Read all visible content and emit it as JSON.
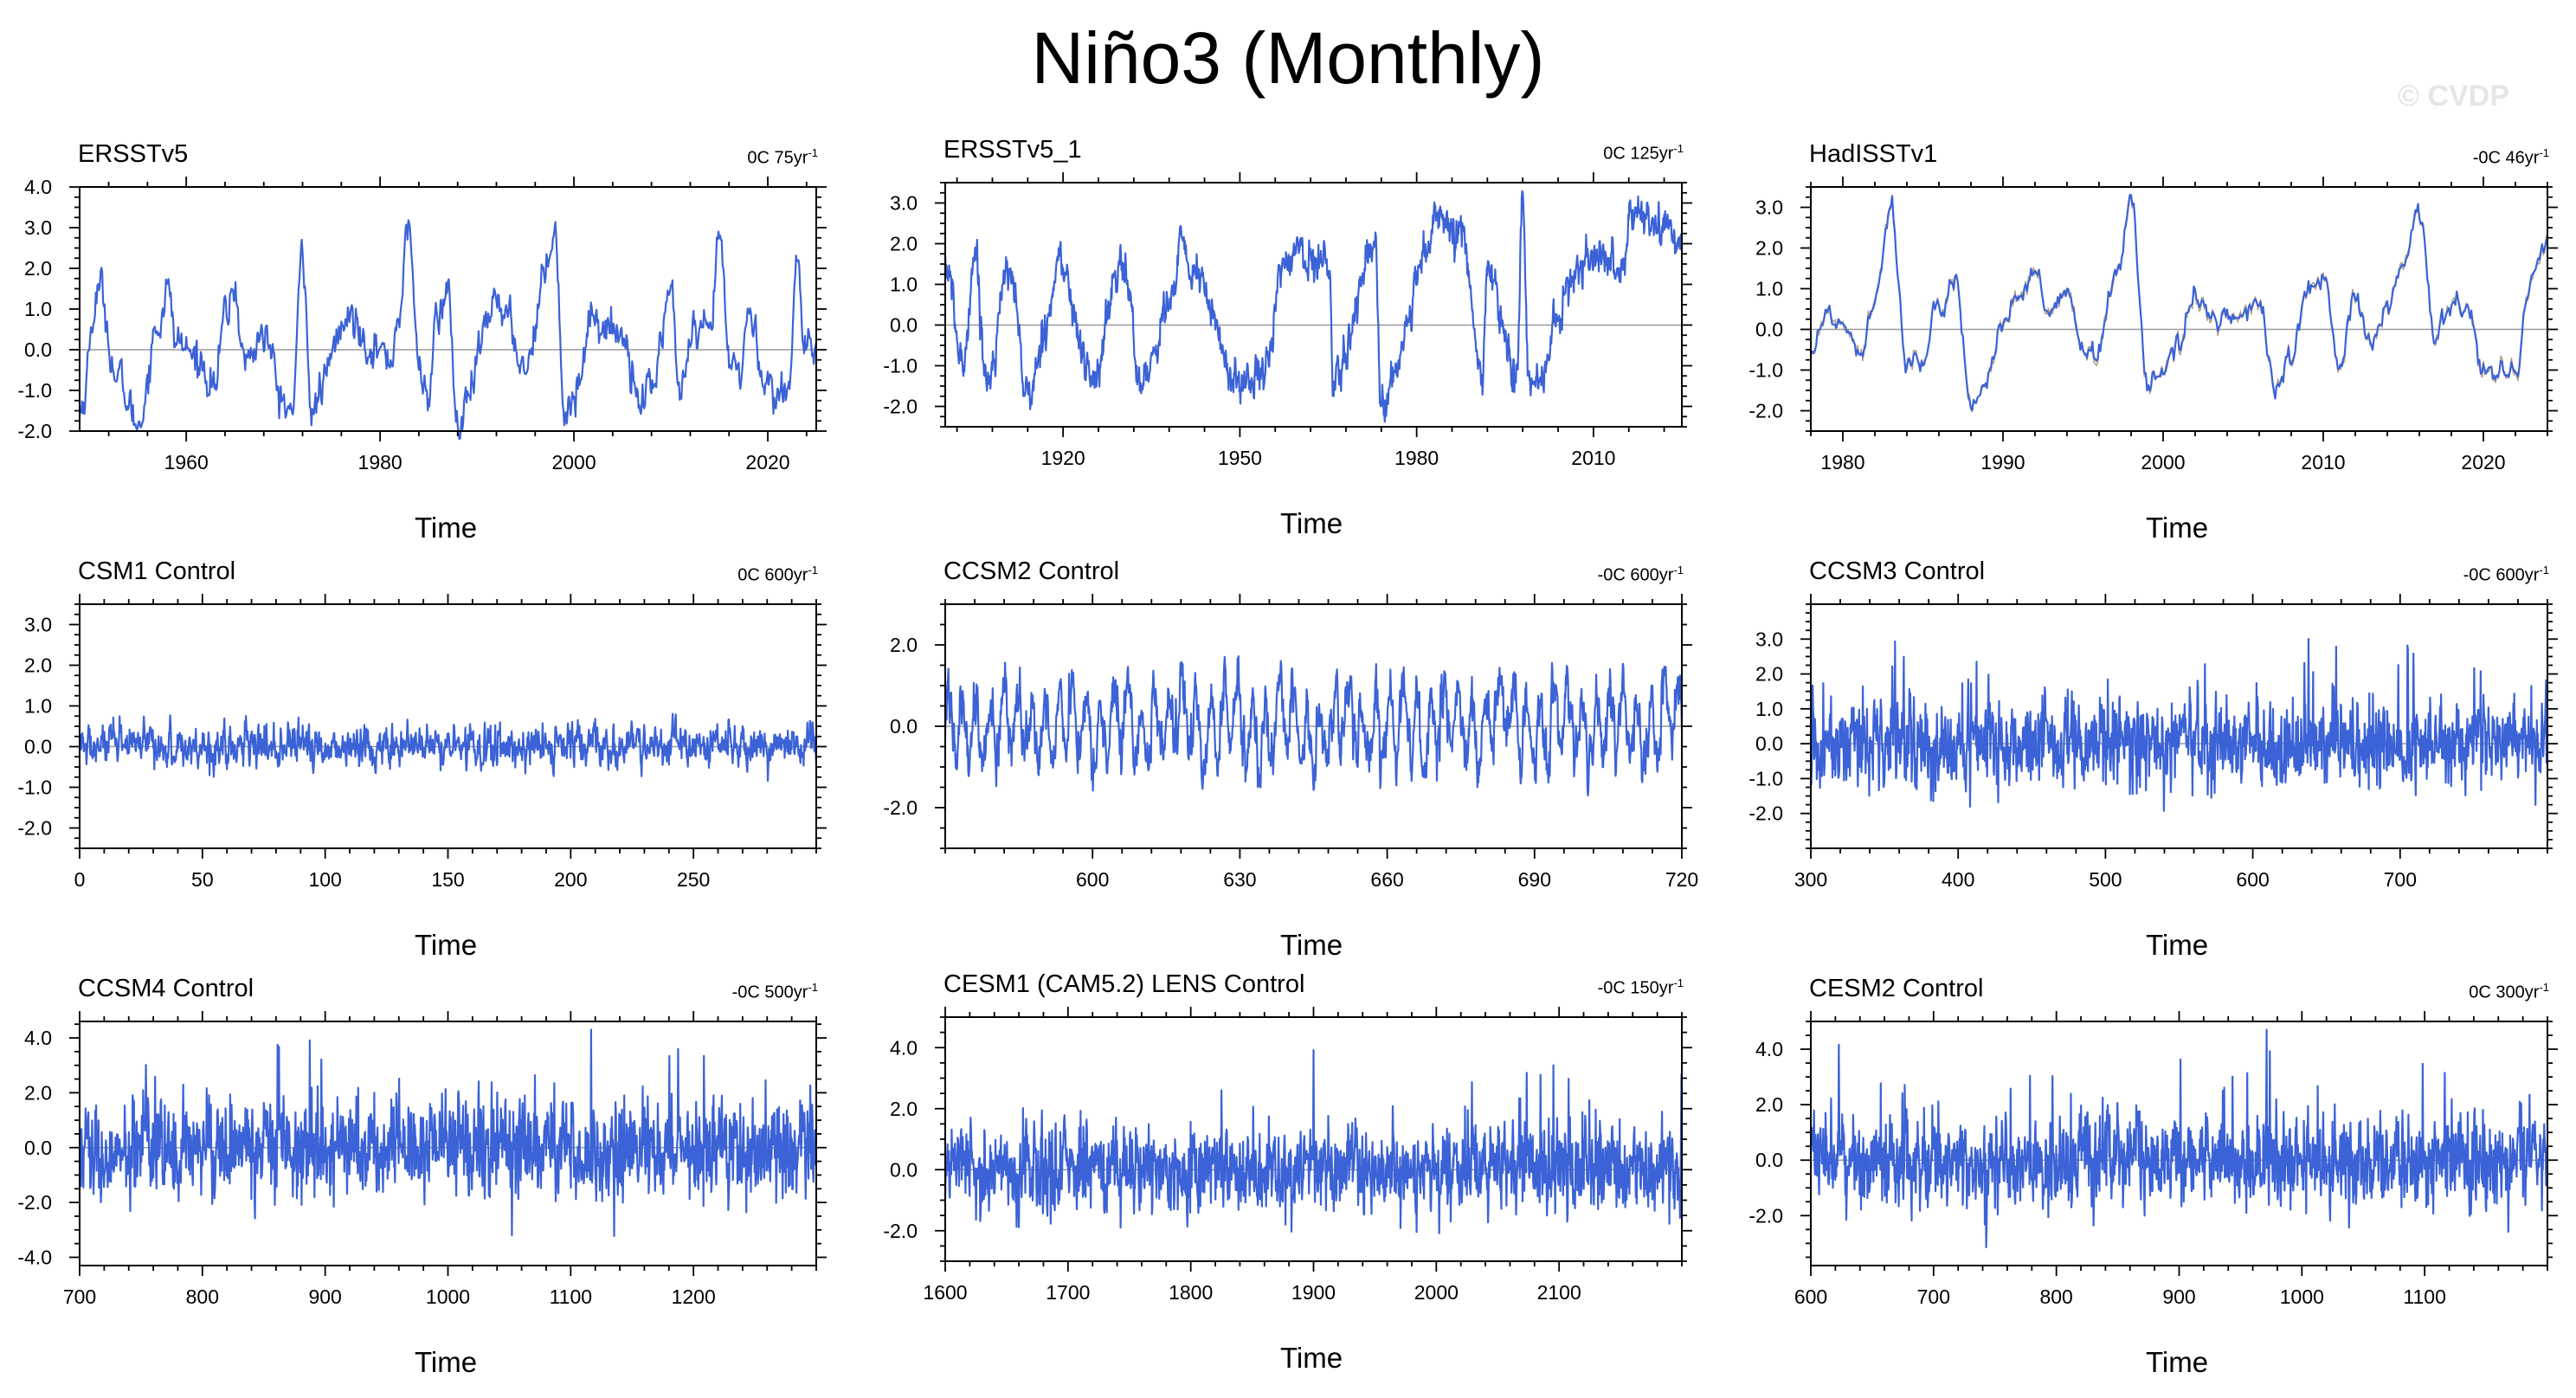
{
  "title": "Niño3 (Monthly)",
  "watermark": "© CVDP",
  "colors": {
    "series": "#3b62d6",
    "axis": "#000000",
    "zero_line": "#9a9a9a",
    "ensemble_spread": "#b0a08a"
  },
  "chart_data": [
    {
      "type": "line",
      "title": "ERSSTv5",
      "stat": "0C 75yr",
      "stat_exp": "-1",
      "xlabel": "Time",
      "ylabel": "",
      "xlim": [
        1949,
        2025
      ],
      "xticks": [
        1960,
        1980,
        2000,
        2020
      ],
      "xtick_labels": [
        "1960",
        "1980",
        "2000",
        "2020"
      ],
      "ylim": [
        -2.0,
        4.0
      ],
      "yticks": [
        -2.0,
        -1.0,
        0.0,
        1.0,
        2.0,
        3.0,
        4.0
      ],
      "ytick_labels": [
        "-2.0",
        "-1.0",
        "0.0",
        "1.0",
        "2.0",
        "3.0",
        "4.0"
      ],
      "series_style": "smooth",
      "amplitude": 0.75,
      "x": [
        1949,
        1951,
        1953,
        1955,
        1957,
        1958,
        1959,
        1961,
        1963,
        1964,
        1965,
        1966,
        1968,
        1970,
        1971,
        1972,
        1973,
        1974,
        1976,
        1977,
        1979,
        1981,
        1982,
        1983,
        1984,
        1985,
        1986,
        1987,
        1988,
        1989,
        1991,
        1992,
        1993,
        1995,
        1997,
        1998,
        1999,
        2000,
        2002,
        2003,
        2005,
        2007,
        2008,
        2010,
        2011,
        2012,
        2014,
        2015,
        2016,
        2017,
        2018,
        2020,
        2021,
        2022,
        2023,
        2024
      ],
      "y": [
        -1.5,
        1.5,
        -0.8,
        -1.8,
        0.5,
        1.5,
        0.2,
        -0.2,
        -0.8,
        0.8,
        1.5,
        -0.3,
        0.4,
        -1.3,
        -1.5,
        2.5,
        -1.7,
        -0.9,
        0.5,
        0.8,
        0.2,
        -0.3,
        1.0,
        3.0,
        -0.5,
        -1.0,
        0.8,
        1.5,
        -2.0,
        -1.3,
        0.5,
        1.5,
        0.7,
        -0.4,
        1.8,
        3.3,
        -1.5,
        -1.2,
        1.0,
        0.5,
        0.4,
        -1.2,
        -0.9,
        1.5,
        -1.3,
        0.2,
        0.3,
        2.8,
        -0.3,
        -0.6,
        0.8,
        -0.8,
        -1.2,
        -1.0,
        2.2,
        -0.3
      ]
    },
    {
      "type": "line",
      "title": "ERSSTv5_1",
      "stat": "0C 125yr",
      "stat_exp": "-1",
      "xlabel": "Time",
      "ylabel": "",
      "xlim": [
        1900,
        2025
      ],
      "xticks": [
        1920,
        1950,
        1980,
        2010
      ],
      "xtick_labels": [
        "1920",
        "1950",
        "1980",
        "2010"
      ],
      "ylim": [
        -2.5,
        3.5
      ],
      "yticks": [
        -2.0,
        -1.0,
        0.0,
        1.0,
        2.0,
        3.0
      ],
      "ytick_labels": [
        "-2.0",
        "-1.0",
        "0.0",
        "1.0",
        "2.0",
        "3.0"
      ],
      "series_style": "smooth",
      "amplitude": 0.75,
      "x": [
        1900,
        1903,
        1905,
        1907,
        1911,
        1914,
        1918,
        1919,
        1925,
        1930,
        1931,
        1933,
        1939,
        1940,
        1942,
        1950,
        1955,
        1957,
        1958,
        1965,
        1966,
        1973,
        1974,
        1976,
        1982,
        1983,
        1988,
        1991,
        1992,
        1997,
        1998,
        1999,
        2009,
        2015,
        2016,
        2024
      ],
      "y": [
        1.5,
        -1.0,
        1.8,
        -1.3,
        1.4,
        -1.8,
        0.5,
        1.6,
        -1.3,
        1.5,
        0.9,
        -1.4,
        0.8,
        2.0,
        1.3,
        -1.5,
        -0.8,
        1.2,
        1.8,
        1.5,
        -1.3,
        2.0,
        -2.0,
        -1.3,
        1.8,
        2.7,
        2.1,
        -1.6,
        1.3,
        -1.3,
        3.3,
        -1.6,
        1.7,
        1.4,
        2.7,
        2.2
      ]
    },
    {
      "type": "line",
      "title": "HadISSTv1",
      "stat": "-0C 46yr",
      "stat_exp": "-1",
      "xlabel": "Time",
      "ylabel": "",
      "xlim": [
        1978,
        2024
      ],
      "xticks": [
        1980,
        1990,
        2000,
        2010,
        2020
      ],
      "xtick_labels": [
        "1980",
        "1990",
        "2000",
        "2010",
        "2020"
      ],
      "ylim": [
        -2.5,
        3.5
      ],
      "yticks": [
        -2.0,
        -1.0,
        0.0,
        1.0,
        2.0,
        3.0
      ],
      "ytick_labels": [
        "-2.0",
        "-1.0",
        "0.0",
        "1.0",
        "2.0",
        "3.0"
      ],
      "series_style": "smooth",
      "amplitude": 0.5,
      "has_spread": true,
      "x": [
        1978,
        1979,
        1980,
        1981,
        1982,
        1983,
        1984,
        1985,
        1986,
        1987,
        1988,
        1989,
        1990,
        1991,
        1992,
        1993,
        1994,
        1995,
        1996,
        1997,
        1998,
        1999,
        2000,
        2001,
        2002,
        2003,
        2004,
        2005,
        2006,
        2007,
        2008,
        2009,
        2010,
        2011,
        2012,
        2013,
        2014,
        2015,
        2016,
        2017,
        2018,
        2019,
        2020,
        2021,
        2022,
        2023,
        2024
      ],
      "y": [
        -0.4,
        0.3,
        0.2,
        -0.5,
        0.8,
        3.1,
        -0.8,
        -0.8,
        0.3,
        1.5,
        -1.9,
        -1.2,
        0.2,
        0.6,
        1.3,
        0.3,
        0.8,
        -0.4,
        -0.6,
        1.3,
        3.3,
        -1.4,
        -1.0,
        -0.4,
        0.8,
        0.3,
        0.5,
        0.2,
        0.8,
        -1.5,
        -0.8,
        0.9,
        1.4,
        -1.0,
        0.7,
        -0.4,
        0.5,
        1.5,
        2.8,
        -0.2,
        0.8,
        0.5,
        -0.9,
        -1.1,
        -1.1,
        1.4,
        2.1
      ]
    },
    {
      "type": "line",
      "title": "CSM1 Control",
      "stat": "0C 600yr",
      "stat_exp": "-1",
      "xlabel": "Time",
      "ylabel": "",
      "xlim": [
        0,
        300
      ],
      "xticks": [
        0,
        50,
        100,
        150,
        200,
        250
      ],
      "xtick_labels": [
        "0",
        "50",
        "100",
        "150",
        "200",
        "250"
      ],
      "ylim": [
        -2.5,
        3.5
      ],
      "yticks": [
        -2.0,
        -1.0,
        0.0,
        1.0,
        2.0,
        3.0
      ],
      "ytick_labels": [
        "-2.0",
        "-1.0",
        "0.0",
        "1.0",
        "2.0",
        "3.0"
      ],
      "series_style": "noise",
      "amplitude": 0.5,
      "x": [
        0,
        300
      ],
      "y": [
        0.0,
        0.0
      ]
    },
    {
      "type": "line",
      "title": "CCSM2 Control",
      "stat": "-0C 600yr",
      "stat_exp": "-1",
      "xlabel": "Time",
      "ylabel": "",
      "xlim": [
        570,
        720
      ],
      "xticks": [
        600,
        630,
        660,
        690,
        720
      ],
      "xtick_labels": [
        "600",
        "630",
        "660",
        "690",
        "720"
      ],
      "ylim": [
        -3.0,
        3.0
      ],
      "yticks": [
        -2.0,
        0.0,
        2.0
      ],
      "ytick_labels": [
        "-2.0",
        "0.0",
        "2.0"
      ],
      "series_style": "oscillating",
      "amplitude": 1.0,
      "x": [
        570,
        720
      ],
      "y": [
        0.0,
        0.0
      ]
    },
    {
      "type": "line",
      "title": "CCSM3 Control",
      "stat": "-0C 600yr",
      "stat_exp": "-1",
      "xlabel": "Time",
      "ylabel": "",
      "xlim": [
        300,
        800
      ],
      "xticks": [
        300,
        400,
        500,
        600,
        700
      ],
      "xtick_labels": [
        "300",
        "400",
        "500",
        "600",
        "700"
      ],
      "ylim": [
        -3.0,
        4.0
      ],
      "yticks": [
        -2.0,
        -1.0,
        0.0,
        1.0,
        2.0,
        3.0
      ],
      "ytick_labels": [
        "-2.0",
        "-1.0",
        "0.0",
        "1.0",
        "2.0",
        "3.0"
      ],
      "series_style": "dense",
      "amplitude": 0.85,
      "x": [
        300,
        800
      ],
      "y": [
        0.0,
        0.0
      ]
    },
    {
      "type": "line",
      "title": "CCSM4 Control",
      "stat": "-0C 500yr",
      "stat_exp": "-1",
      "xlabel": "Time",
      "ylabel": "",
      "xlim": [
        700,
        1300
      ],
      "xticks": [
        700,
        800,
        900,
        1000,
        1100,
        1200
      ],
      "xtick_labels": [
        "700",
        "800",
        "900",
        "1000",
        "1100",
        "1200"
      ],
      "ylim": [
        -4.3,
        4.6
      ],
      "yticks": [
        -4.0,
        -2.0,
        0.0,
        2.0,
        4.0
      ],
      "ytick_labels": [
        "-4.0",
        "-2.0",
        "0.0",
        "2.0",
        "4.0"
      ],
      "series_style": "dense",
      "amplitude": 1.2,
      "x": [
        700,
        1300
      ],
      "y": [
        0.0,
        0.0
      ]
    },
    {
      "type": "line",
      "title": "CESM1 (CAM5.2) LENS Control",
      "stat": "-0C 150yr",
      "stat_exp": "-1",
      "xlabel": "Time",
      "ylabel": "",
      "xlim": [
        1600,
        2200
      ],
      "xticks": [
        1600,
        1700,
        1800,
        1900,
        2000,
        2100
      ],
      "xtick_labels": [
        "1600",
        "1700",
        "1800",
        "1900",
        "2000",
        "2100"
      ],
      "ylim": [
        -3.0,
        5.0
      ],
      "yticks": [
        -2.0,
        0.0,
        2.0,
        4.0
      ],
      "ytick_labels": [
        "-2.0",
        "0.0",
        "2.0",
        "4.0"
      ],
      "series_style": "dense",
      "amplitude": 0.95,
      "x": [
        1600,
        2200
      ],
      "y": [
        0.0,
        0.0
      ]
    },
    {
      "type": "line",
      "title": "CESM2 Control",
      "stat": "0C 300yr",
      "stat_exp": "-1",
      "xlabel": "Time",
      "ylabel": "",
      "xlim": [
        600,
        1200
      ],
      "xticks": [
        600,
        700,
        800,
        900,
        1000,
        1100
      ],
      "xtick_labels": [
        "600",
        "700",
        "800",
        "900",
        "1000",
        "1100"
      ],
      "ylim": [
        -3.8,
        5.0
      ],
      "yticks": [
        -2.0,
        0.0,
        2.0,
        4.0
      ],
      "ytick_labels": [
        "-2.0",
        "0.0",
        "2.0",
        "4.0"
      ],
      "series_style": "dense",
      "amplitude": 1.1,
      "x": [
        600,
        1200
      ],
      "y": [
        0.0,
        0.0
      ]
    }
  ]
}
